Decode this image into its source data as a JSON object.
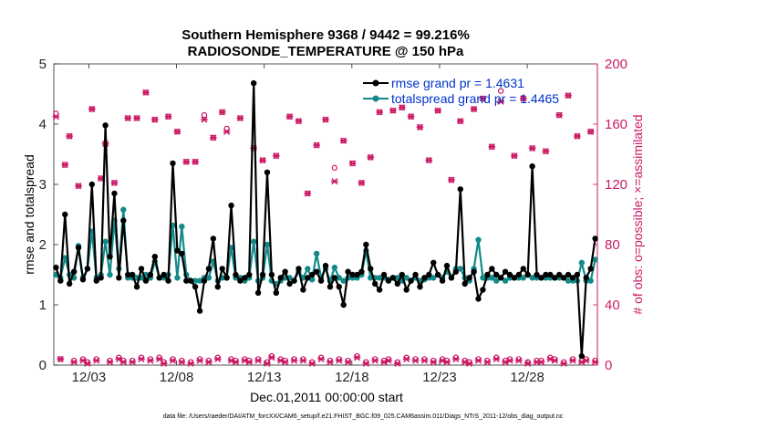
{
  "colors": {
    "rmse": "#000000",
    "spread": "#138a8a",
    "obs": "#cc1a66",
    "legend_text": "#0033cc",
    "axis": "#262626"
  },
  "chart_data": {
    "type": "line",
    "title_line1": "Southern Hemisphere 9368 / 9442 = 99.216%",
    "title_line2": "RADIOSONDE_TEMPERATURE @ 150 hPa",
    "xlabel": "Dec.01,2011 00:00:00 start",
    "ylabel_left": "rmse and totalspread",
    "ylabel_right": "# of obs: o=possible; ×=assimilated",
    "xlim": [
      0,
      62
    ],
    "ylim_left": [
      0,
      5
    ],
    "ylim_right": [
      0,
      200
    ],
    "x_ticks": [
      4,
      14,
      24,
      34,
      44,
      54
    ],
    "x_tick_labels": [
      "12/03",
      "12/08",
      "12/13",
      "12/18",
      "12/23",
      "12/28"
    ],
    "y_ticks_left": [
      0,
      1,
      2,
      3,
      4,
      5
    ],
    "y_ticks_right": [
      0,
      40,
      80,
      120,
      160,
      200
    ],
    "legend": {
      "rmse": "rmse grand pr = 1.4631",
      "spread": "totalspread grand pr = 1.4465"
    },
    "footnote": "data file: /Users/raeder/DAI/ATM_forcXX/CAM6_setup/f.e21.FHIST_BGC.f09_025.CAM6assim.011/Diags_NTrS_2011-12/obs_diag_output.nc",
    "series": [
      {
        "name": "rmse",
        "axis": "left",
        "y": [
          1.62,
          1.4,
          2.5,
          1.35,
          1.55,
          1.95,
          1.42,
          1.6,
          3.0,
          1.4,
          1.45,
          3.98,
          1.8,
          2.85,
          1.45,
          2.4,
          1.5,
          1.5,
          1.3,
          1.6,
          1.4,
          1.5,
          1.8,
          1.45,
          1.5,
          1.4,
          3.35,
          1.9,
          1.85,
          1.4,
          1.4,
          1.3,
          0.9,
          1.4,
          1.6,
          2.1,
          1.3,
          1.6,
          1.45,
          2.65,
          1.5,
          1.4,
          1.45,
          1.5,
          4.68,
          1.2,
          1.5,
          3.2,
          1.5,
          1.2,
          1.45,
          1.55,
          1.35,
          1.4,
          1.6,
          1.25,
          1.45,
          1.5,
          1.55,
          1.4,
          1.65,
          1.3,
          1.45,
          1.3,
          1.0,
          1.55,
          1.5,
          1.5,
          1.55,
          2.0,
          1.6,
          1.35,
          1.25,
          1.5,
          1.4,
          1.45,
          1.35,
          1.5,
          1.25,
          1.4,
          1.5,
          1.3,
          1.45,
          1.5,
          1.7,
          1.5,
          1.4,
          1.65,
          1.45,
          1.55,
          2.92,
          1.35,
          1.45,
          1.55,
          1.1,
          1.25,
          1.5,
          1.6,
          1.5,
          1.45,
          1.55,
          1.5,
          1.45,
          1.5,
          1.6,
          1.5,
          3.3,
          1.5,
          1.45,
          1.5,
          1.5,
          1.45,
          1.5,
          1.45,
          1.5,
          1.45,
          1.5,
          0.15,
          1.45,
          1.6,
          2.1
        ]
      },
      {
        "name": "totalspread",
        "axis": "left",
        "y": [
          1.5,
          1.45,
          1.78,
          1.5,
          1.45,
          1.98,
          1.45,
          1.6,
          2.22,
          1.45,
          1.5,
          2.05,
          1.5,
          2.4,
          1.6,
          2.58,
          1.45,
          1.45,
          1.45,
          1.45,
          1.5,
          1.45,
          1.72,
          1.45,
          1.45,
          1.5,
          2.32,
          1.45,
          2.3,
          1.5,
          1.4,
          1.4,
          1.4,
          1.45,
          1.45,
          1.72,
          1.4,
          1.45,
          1.45,
          1.95,
          1.45,
          1.45,
          1.4,
          1.45,
          2.05,
          1.4,
          1.45,
          2.0,
          1.4,
          1.35,
          1.4,
          1.45,
          1.45,
          1.4,
          1.55,
          1.45,
          1.6,
          1.42,
          1.85,
          1.45,
          1.6,
          1.4,
          1.62,
          1.45,
          1.4,
          1.45,
          1.45,
          1.45,
          1.5,
          1.9,
          1.45,
          1.45,
          1.45,
          1.45,
          1.42,
          1.45,
          1.45,
          1.4,
          1.45,
          1.4,
          1.45,
          1.4,
          1.42,
          1.45,
          1.45,
          1.5,
          1.45,
          1.55,
          1.45,
          1.6,
          1.6,
          1.45,
          1.4,
          1.6,
          2.08,
          1.45,
          1.45,
          1.45,
          1.4,
          1.45,
          1.4,
          1.45,
          1.45,
          1.45,
          1.45,
          1.5,
          1.45,
          1.45,
          1.45,
          1.45,
          1.45,
          1.45,
          1.45,
          1.45,
          1.4,
          1.4,
          1.4,
          1.7,
          1.4,
          1.4,
          1.75
        ]
      },
      {
        "name": "obs_assimilated",
        "axis": "right",
        "marker": "x",
        "y": [
          165,
          4,
          133,
          152,
          2,
          119,
          3,
          1,
          170,
          3,
          124,
          147,
          2,
          121,
          4,
          2,
          164,
          2,
          164,
          4,
          181,
          3,
          163,
          4,
          1,
          165,
          3,
          155,
          2,
          135,
          1,
          135,
          3,
          163,
          2,
          151,
          4,
          168,
          155,
          3,
          2,
          164,
          3,
          2,
          144,
          3,
          136,
          1,
          5,
          139,
          3,
          2,
          165,
          3,
          162,
          3,
          114,
          1,
          146,
          4,
          163,
          2,
          122,
          3,
          149,
          2,
          134,
          5,
          121,
          1,
          138,
          3,
          168,
          2,
          3,
          169,
          1,
          171,
          4,
          165,
          3,
          158,
          3,
          136,
          2,
          169,
          3,
          2,
          123,
          4,
          162,
          2,
          1,
          170,
          3,
          177,
          2,
          145,
          4,
          175,
          2,
          3,
          139,
          3,
          177,
          1,
          144,
          2,
          2,
          142,
          4,
          3,
          166,
          1,
          179,
          3,
          152,
          2,
          3,
          155,
          2
        ]
      },
      {
        "name": "obs_possible",
        "axis": "right",
        "marker": "o",
        "y": [
          167,
          4,
          133,
          152,
          3,
          119,
          4,
          2,
          170,
          4,
          124,
          147,
          3,
          121,
          5,
          3,
          164,
          3,
          164,
          5,
          181,
          4,
          163,
          5,
          2,
          165,
          4,
          155,
          3,
          135,
          2,
          135,
          4,
          166,
          3,
          151,
          5,
          168,
          157,
          4,
          3,
          164,
          4,
          3,
          144,
          4,
          136,
          2,
          6,
          139,
          4,
          3,
          165,
          4,
          162,
          4,
          114,
          2,
          146,
          5,
          163,
          3,
          131,
          4,
          149,
          3,
          134,
          6,
          121,
          2,
          138,
          4,
          168,
          3,
          4,
          169,
          2,
          171,
          5,
          165,
          4,
          158,
          4,
          136,
          3,
          169,
          4,
          3,
          123,
          5,
          162,
          3,
          2,
          170,
          4,
          177,
          3,
          145,
          5,
          182,
          3,
          4,
          139,
          4,
          177,
          2,
          144,
          3,
          3,
          142,
          5,
          4,
          166,
          2,
          179,
          4,
          152,
          3,
          4,
          155,
          3
        ]
      }
    ]
  }
}
